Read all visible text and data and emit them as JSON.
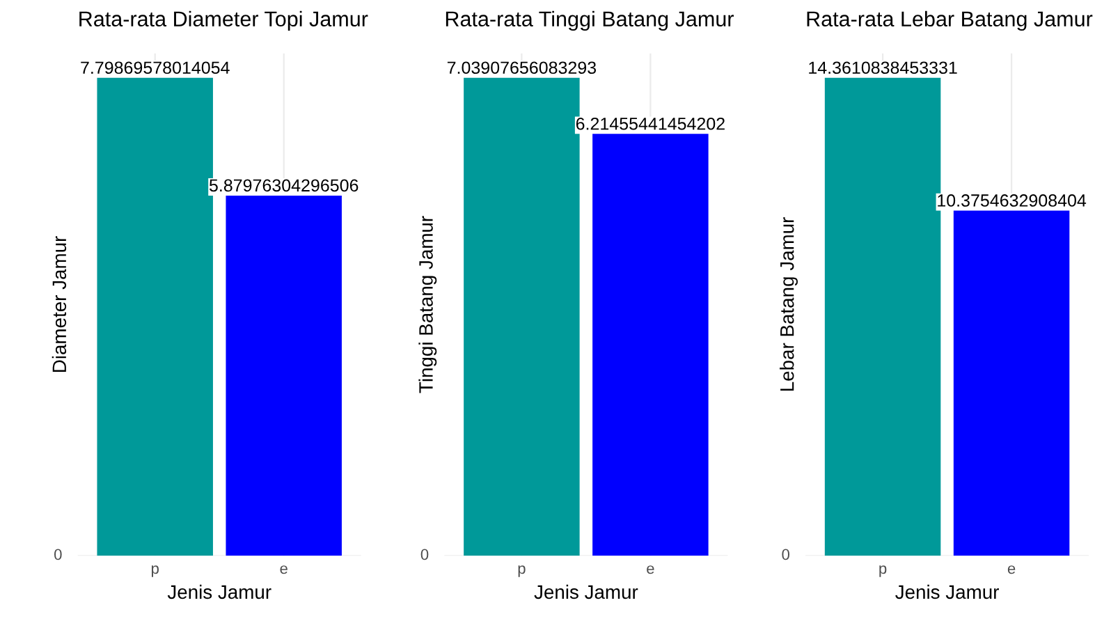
{
  "chart_data": [
    {
      "type": "bar",
      "title": "Rata-rata Diameter Topi Jamur",
      "xlabel": "Jenis Jamur",
      "ylabel": "Diameter Jamur",
      "categories": [
        "p",
        "e"
      ],
      "values": [
        7.79869578014054,
        5.87976304296506
      ],
      "colors": [
        "#009999",
        "#0000ff"
      ],
      "annotations": [
        "0"
      ],
      "data_labels": true,
      "grid": "x"
    },
    {
      "type": "bar",
      "title": "Rata-rata Tinggi Batang Jamur",
      "xlabel": "Jenis Jamur",
      "ylabel": "Tinggi Batang Jamur",
      "categories": [
        "p",
        "e"
      ],
      "values": [
        7.03907656083293,
        6.21455441454202
      ],
      "colors": [
        "#009999",
        "#0000ff"
      ],
      "annotations": [
        "0"
      ],
      "data_labels": true,
      "grid": "x"
    },
    {
      "type": "bar",
      "title": "Rata-rata Lebar Batang Jamur",
      "xlabel": "Jenis Jamur",
      "ylabel": "Lebar Batang Jamur",
      "categories": [
        "p",
        "e"
      ],
      "values": [
        14.3610838453331,
        10.3754632908404
      ],
      "colors": [
        "#009999",
        "#0000ff"
      ],
      "annotations": [
        "0"
      ],
      "data_labels": true,
      "grid": "x"
    }
  ]
}
